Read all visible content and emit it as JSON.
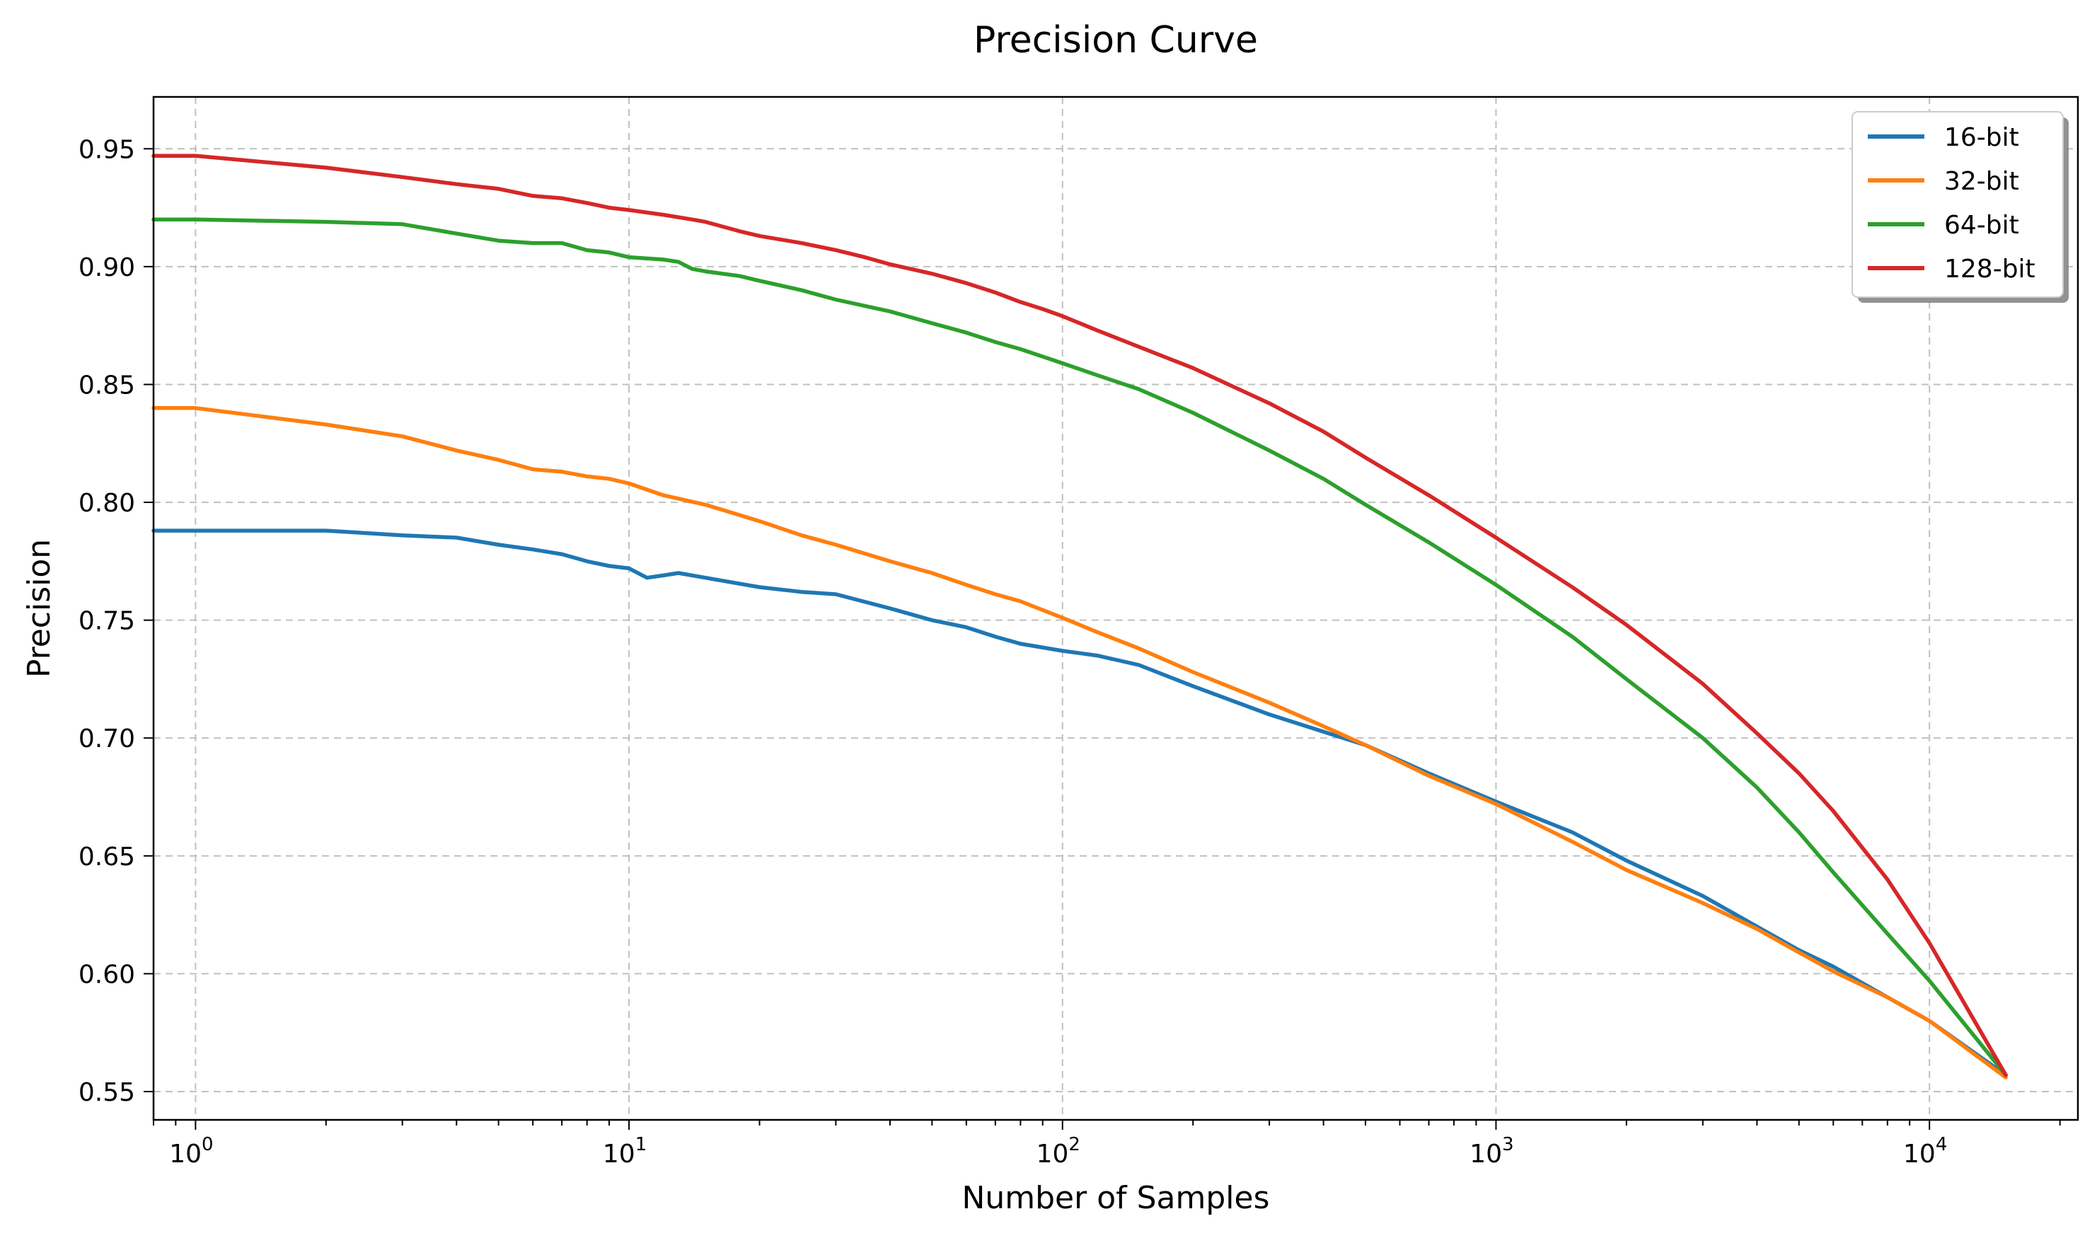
{
  "chart_data": {
    "type": "line",
    "title": "Precision Curve",
    "xlabel": "Number of Samples",
    "ylabel": "Precision",
    "x_scale": "log",
    "xlim": [
      0.8,
      22000
    ],
    "ylim": [
      0.538,
      0.972
    ],
    "x_ticks": [
      {
        "value": 1,
        "base": "10",
        "exp": "0"
      },
      {
        "value": 10,
        "base": "10",
        "exp": "1"
      },
      {
        "value": 100,
        "base": "10",
        "exp": "2"
      },
      {
        "value": 1000,
        "base": "10",
        "exp": "3"
      },
      {
        "value": 10000,
        "base": "10",
        "exp": "4"
      }
    ],
    "y_ticks": [
      {
        "value": 0.55,
        "label": "0.55"
      },
      {
        "value": 0.6,
        "label": "0.60"
      },
      {
        "value": 0.65,
        "label": "0.65"
      },
      {
        "value": 0.7,
        "label": "0.70"
      },
      {
        "value": 0.75,
        "label": "0.75"
      },
      {
        "value": 0.8,
        "label": "0.80"
      },
      {
        "value": 0.85,
        "label": "0.85"
      },
      {
        "value": 0.9,
        "label": "0.90"
      },
      {
        "value": 0.95,
        "label": "0.95"
      }
    ],
    "grid": true,
    "legend_position": "top-right",
    "series": [
      {
        "name": "16-bit",
        "color": "#1f77b4",
        "x": [
          0.8,
          1,
          2,
          3,
          4,
          5,
          6,
          7,
          8,
          9,
          10,
          11,
          12,
          13,
          15,
          20,
          25,
          30,
          40,
          50,
          60,
          70,
          80,
          100,
          120,
          150,
          200,
          300,
          500,
          700,
          1000,
          1500,
          2000,
          3000,
          4000,
          5000,
          6000,
          8000,
          10000,
          15000
        ],
        "y": [
          0.788,
          0.788,
          0.788,
          0.786,
          0.785,
          0.782,
          0.78,
          0.778,
          0.775,
          0.773,
          0.772,
          0.768,
          0.769,
          0.77,
          0.768,
          0.764,
          0.762,
          0.761,
          0.755,
          0.75,
          0.747,
          0.743,
          0.74,
          0.737,
          0.735,
          0.731,
          0.722,
          0.71,
          0.697,
          0.685,
          0.673,
          0.66,
          0.648,
          0.633,
          0.62,
          0.61,
          0.603,
          0.59,
          0.58,
          0.557
        ]
      },
      {
        "name": "32-bit",
        "color": "#ff7f0e",
        "x": [
          0.8,
          1,
          2,
          3,
          4,
          5,
          6,
          7,
          8,
          9,
          10,
          12,
          15,
          20,
          25,
          30,
          40,
          50,
          60,
          70,
          80,
          100,
          120,
          150,
          200,
          300,
          400,
          500,
          700,
          1000,
          1500,
          2000,
          3000,
          4000,
          5000,
          6000,
          8000,
          10000,
          15000
        ],
        "y": [
          0.84,
          0.84,
          0.833,
          0.828,
          0.822,
          0.818,
          0.814,
          0.813,
          0.811,
          0.81,
          0.808,
          0.803,
          0.799,
          0.792,
          0.786,
          0.782,
          0.775,
          0.77,
          0.765,
          0.761,
          0.758,
          0.751,
          0.745,
          0.738,
          0.728,
          0.715,
          0.705,
          0.697,
          0.684,
          0.672,
          0.656,
          0.644,
          0.63,
          0.619,
          0.609,
          0.601,
          0.59,
          0.58,
          0.556
        ]
      },
      {
        "name": "64-bit",
        "color": "#2ca02c",
        "x": [
          0.8,
          1,
          2,
          3,
          4,
          5,
          6,
          7,
          8,
          9,
          10,
          12,
          13,
          14,
          15,
          18,
          20,
          25,
          30,
          40,
          50,
          60,
          70,
          80,
          100,
          120,
          150,
          200,
          300,
          400,
          500,
          700,
          1000,
          1500,
          2000,
          3000,
          4000,
          5000,
          6000,
          8000,
          10000,
          15000
        ],
        "y": [
          0.92,
          0.92,
          0.919,
          0.918,
          0.914,
          0.911,
          0.91,
          0.91,
          0.907,
          0.906,
          0.904,
          0.903,
          0.902,
          0.899,
          0.898,
          0.896,
          0.894,
          0.89,
          0.886,
          0.881,
          0.876,
          0.872,
          0.868,
          0.865,
          0.859,
          0.854,
          0.848,
          0.838,
          0.822,
          0.81,
          0.799,
          0.783,
          0.765,
          0.743,
          0.725,
          0.7,
          0.679,
          0.66,
          0.643,
          0.617,
          0.597,
          0.557
        ]
      },
      {
        "name": "128-bit",
        "color": "#d62728",
        "x": [
          0.8,
          1,
          2,
          3,
          4,
          5,
          6,
          7,
          8,
          9,
          10,
          12,
          14,
          15,
          18,
          20,
          25,
          30,
          35,
          40,
          50,
          60,
          70,
          80,
          90,
          100,
          120,
          150,
          200,
          300,
          400,
          500,
          700,
          1000,
          1500,
          2000,
          3000,
          4000,
          5000,
          6000,
          8000,
          10000,
          15000
        ],
        "y": [
          0.947,
          0.947,
          0.942,
          0.938,
          0.935,
          0.933,
          0.93,
          0.929,
          0.927,
          0.925,
          0.924,
          0.922,
          0.92,
          0.919,
          0.915,
          0.913,
          0.91,
          0.907,
          0.904,
          0.901,
          0.897,
          0.893,
          0.889,
          0.885,
          0.882,
          0.879,
          0.873,
          0.866,
          0.857,
          0.842,
          0.83,
          0.819,
          0.803,
          0.785,
          0.764,
          0.748,
          0.723,
          0.702,
          0.685,
          0.669,
          0.64,
          0.613,
          0.557
        ]
      }
    ]
  }
}
